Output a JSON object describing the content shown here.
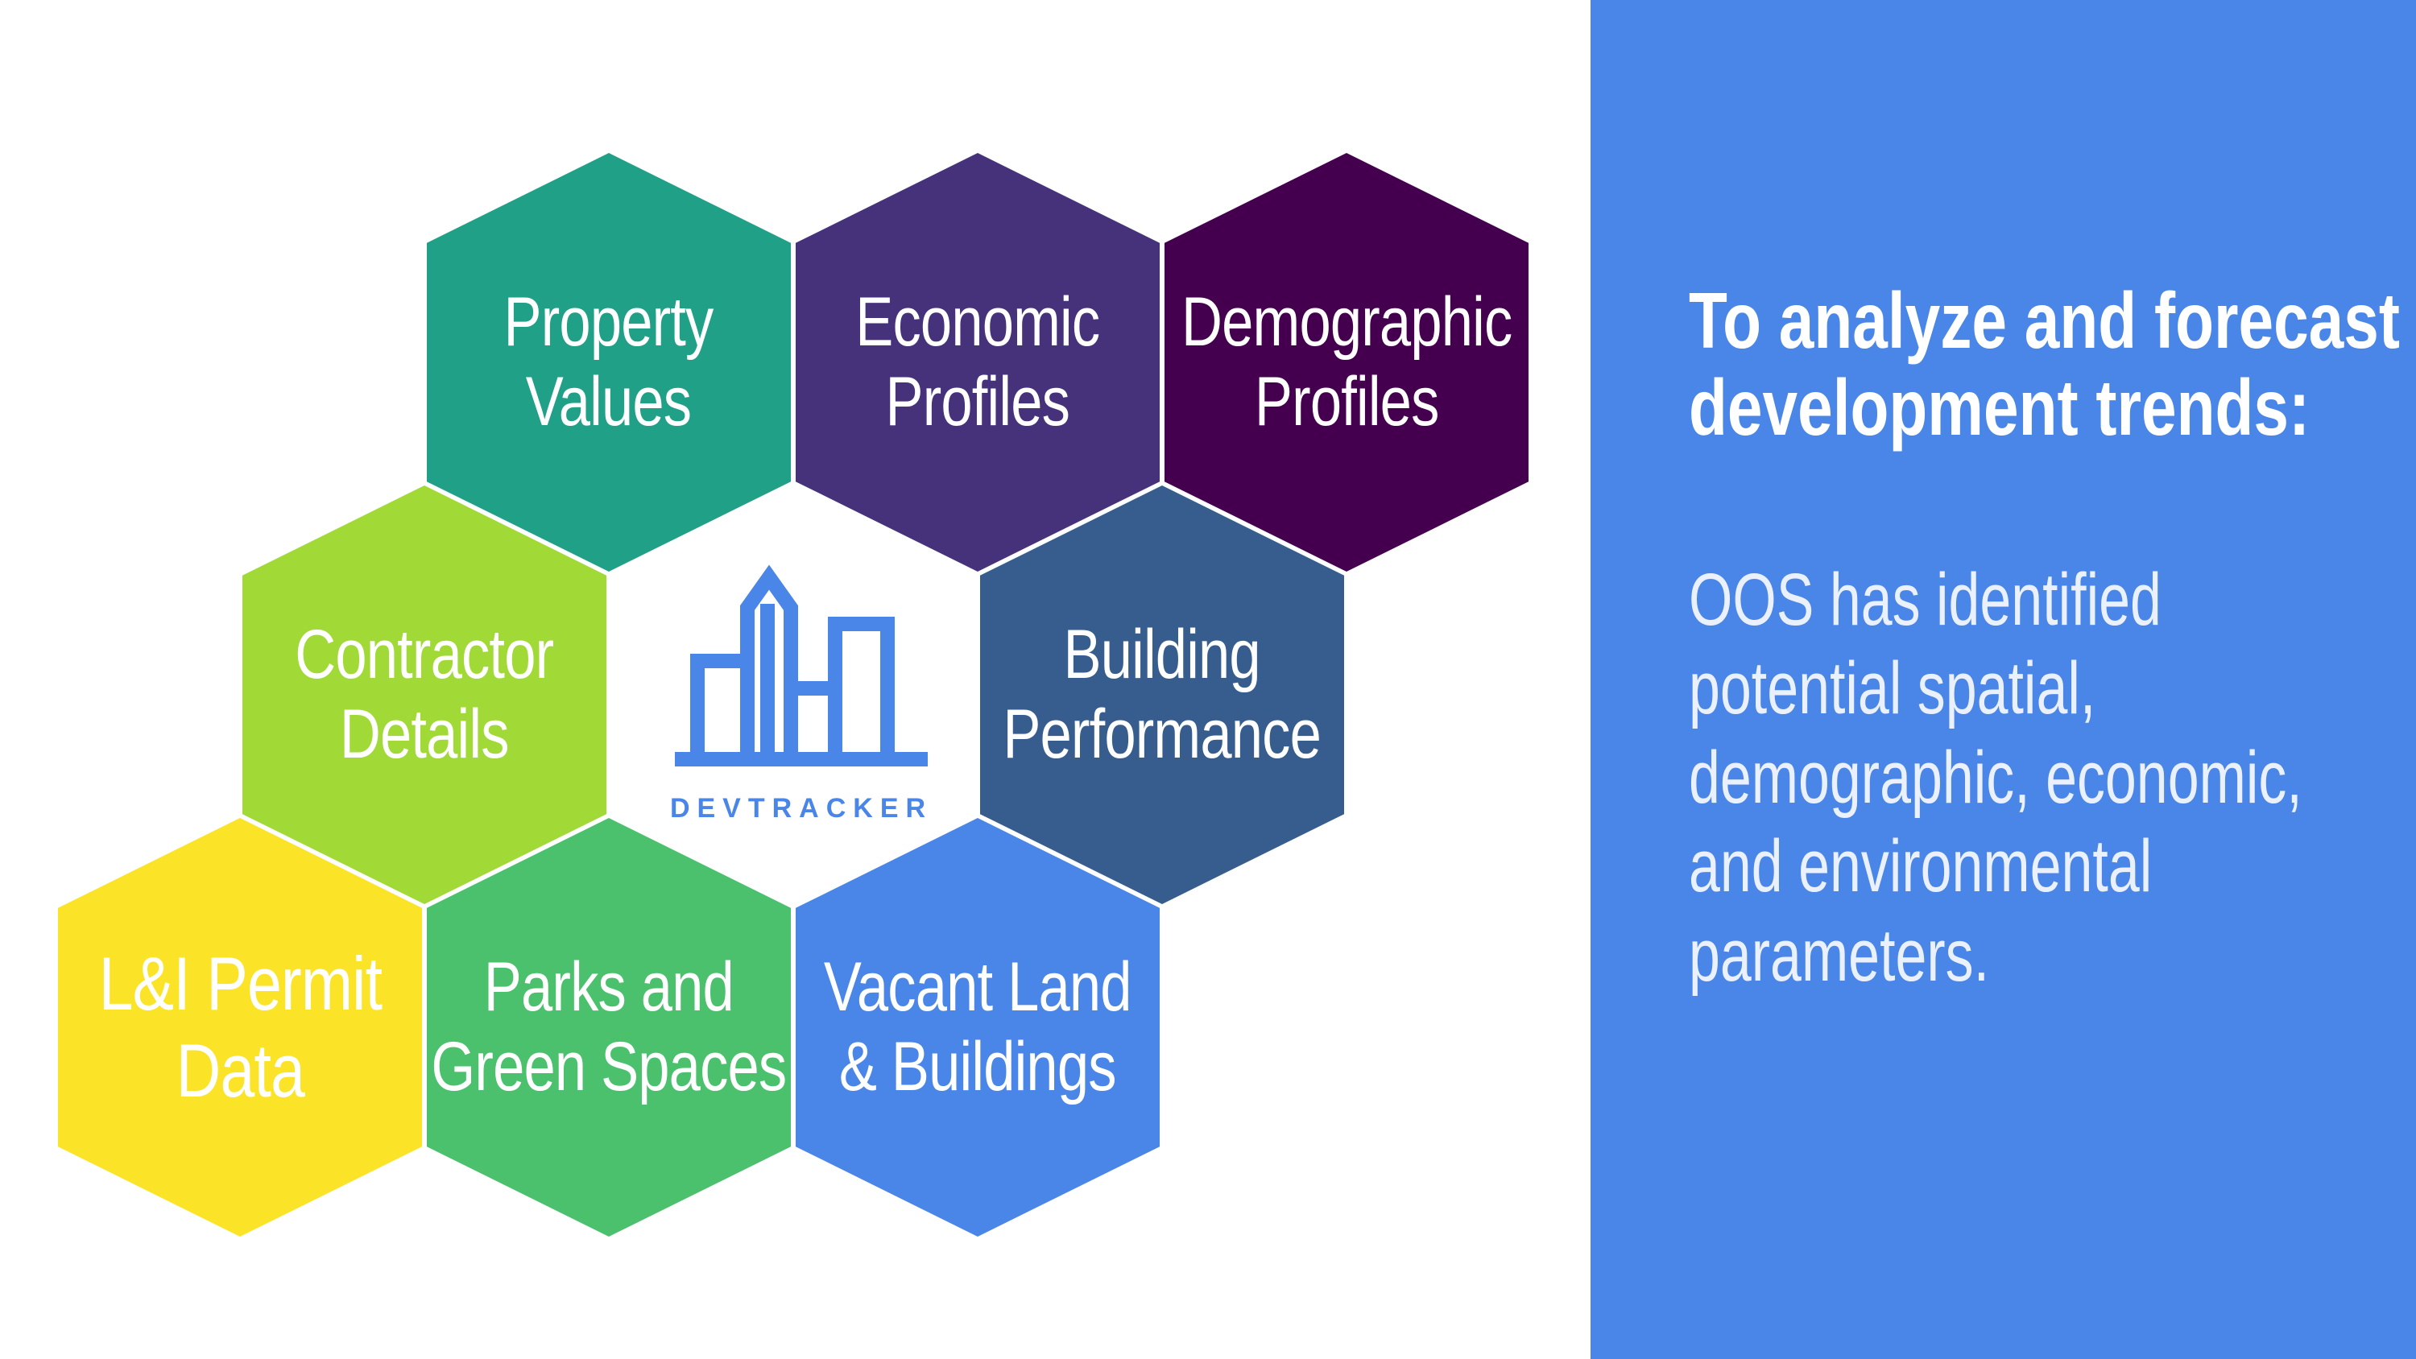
{
  "hexagons": {
    "property_values": {
      "line1": "Property",
      "line2": "Values",
      "color": "#21a088"
    },
    "economic_profiles": {
      "line1": "Economic",
      "line2": "Profiles",
      "color": "#45327a"
    },
    "demographic_profiles": {
      "line1": "Demographic",
      "line2": "Profiles",
      "color": "#44004e"
    },
    "contractor_details": {
      "line1": "Contractor",
      "line2": "Details",
      "color": "#a1d937"
    },
    "building_performance": {
      "line1": "Building",
      "line2": "Performance",
      "color": "#365d8d"
    },
    "li_permit_data": {
      "line1": "L&I Permit",
      "line2": "Data",
      "color": "#fbe427"
    },
    "parks_green_spaces": {
      "line1": "Parks and",
      "line2": "Green Spaces",
      "color": "#4bc16e"
    },
    "vacant_land_buildings": {
      "line1": "Vacant Land",
      "line2": "& Buildings",
      "color": "#4a86e8"
    }
  },
  "logo": {
    "wordmark": "DEVTRACKER",
    "color": "#4a86e8"
  },
  "panel": {
    "color": "#4a86e8",
    "heading": {
      "line1": "To analyze and forecast",
      "line2": "development trends:"
    },
    "body": {
      "line1": "OOS has identified",
      "line2": "potential spatial,",
      "line3": "demographic, economic,",
      "line4": "and environmental",
      "line5": "parameters."
    }
  }
}
